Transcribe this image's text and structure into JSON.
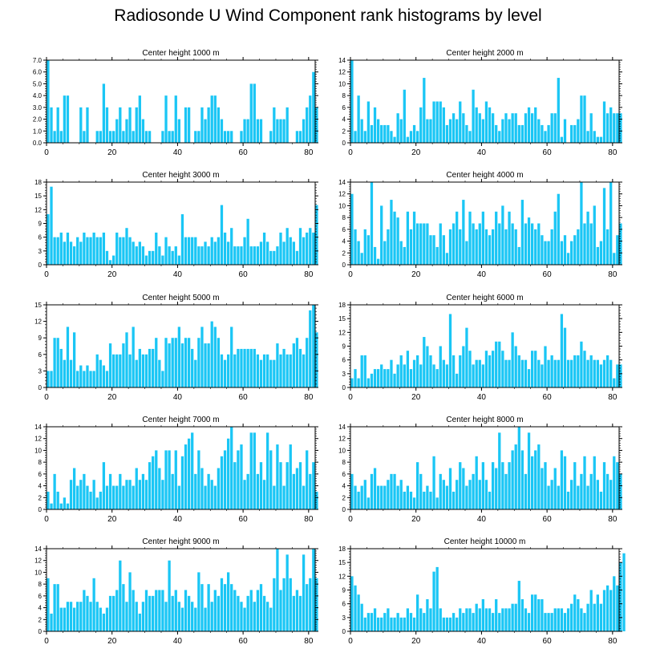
{
  "title": "Radiosonde U Wind Component rank histograms by level",
  "bar_color": "#1ac6f5",
  "chart_data": [
    {
      "type": "bar",
      "title": "Center height 1000 m",
      "ylim": [
        0,
        7
      ],
      "yticks": [
        0,
        1,
        2,
        3,
        4,
        5,
        6,
        7
      ],
      "ytick_labels": [
        "0.0",
        "1.0",
        "2.0",
        "3.0",
        "4.0",
        "5.0",
        "6.0",
        "7.0"
      ],
      "xticks": [
        0,
        20,
        40,
        60,
        80
      ],
      "xlim": [
        0,
        82
      ],
      "values": [
        7,
        3,
        1,
        3,
        1,
        4,
        4,
        0,
        0,
        0,
        3,
        1,
        3,
        0,
        0,
        1,
        1,
        5,
        3,
        1,
        1,
        2,
        3,
        1,
        2,
        3,
        1,
        3,
        4,
        2,
        1,
        1,
        0,
        0,
        0,
        1,
        4,
        1,
        1,
        4,
        2,
        0,
        3,
        3,
        0,
        1,
        1,
        3,
        2,
        3,
        4,
        4,
        3,
        2,
        1,
        1,
        1,
        0,
        0,
        1,
        2,
        2,
        5,
        5,
        2,
        2,
        0,
        0,
        1,
        3,
        2,
        2,
        2,
        3,
        0,
        0,
        1,
        1,
        2,
        3,
        4,
        6,
        3
      ]
    },
    {
      "type": "bar",
      "title": "Center height 2000 m",
      "ylim": [
        0,
        14
      ],
      "yticks": [
        0,
        2,
        4,
        6,
        8,
        10,
        12,
        14
      ],
      "ytick_labels": [
        "0",
        "2",
        "4",
        "6",
        "8",
        "10",
        "12",
        "14"
      ],
      "xticks": [
        0,
        20,
        40,
        60,
        80
      ],
      "xlim": [
        0,
        82
      ],
      "values": [
        14,
        2,
        8,
        4,
        2,
        7,
        3,
        6,
        4,
        3,
        3,
        3,
        2,
        1,
        5,
        4,
        9,
        1,
        2,
        3,
        2,
        6,
        11,
        4,
        4,
        7,
        7,
        7,
        6,
        3,
        4,
        5,
        4,
        7,
        5,
        3,
        2,
        9,
        6,
        5,
        4,
        7,
        6,
        5,
        3,
        2,
        4,
        5,
        4,
        5,
        5,
        3,
        3,
        5,
        6,
        5,
        6,
        4,
        3,
        2,
        3,
        5,
        5,
        11,
        1,
        4,
        0,
        3,
        3,
        4,
        8,
        8,
        2,
        5,
        2,
        1,
        1,
        7,
        5,
        6,
        5,
        5,
        5
      ]
    },
    {
      "type": "bar",
      "title": "Center height 3000 m",
      "ylim": [
        0,
        18
      ],
      "yticks": [
        0,
        3,
        6,
        9,
        12,
        15,
        18
      ],
      "ytick_labels": [
        "0",
        "3",
        "6",
        "9",
        "12",
        "15",
        "18"
      ],
      "xticks": [
        0,
        20,
        40,
        60,
        80
      ],
      "xlim": [
        0,
        82
      ],
      "values": [
        11,
        17,
        6,
        6,
        7,
        5,
        7,
        5,
        4,
        6,
        5,
        7,
        6,
        6,
        7,
        6,
        6,
        7,
        3,
        1,
        2,
        7,
        6,
        6,
        8,
        6,
        5,
        4,
        5,
        4,
        2,
        3,
        3,
        7,
        4,
        2,
        6,
        4,
        3,
        4,
        2,
        11,
        6,
        6,
        6,
        6,
        4,
        4,
        5,
        4,
        6,
        5,
        6,
        13,
        7,
        5,
        8,
        4,
        4,
        4,
        6,
        10,
        4,
        4,
        4,
        5,
        7,
        5,
        3,
        3,
        4,
        7,
        5,
        8,
        6,
        5,
        3,
        8,
        6,
        7,
        8,
        7,
        13
      ]
    },
    {
      "type": "bar",
      "title": "Center height 4000 m",
      "ylim": [
        0,
        14
      ],
      "yticks": [
        0,
        2,
        4,
        6,
        8,
        10,
        12,
        14
      ],
      "ytick_labels": [
        "0",
        "2",
        "4",
        "6",
        "8",
        "10",
        "12",
        "14"
      ],
      "xticks": [
        0,
        20,
        40,
        60,
        80
      ],
      "xlim": [
        0,
        82
      ],
      "values": [
        12,
        6,
        4,
        2,
        6,
        5,
        14,
        3,
        1,
        10,
        4,
        6,
        11,
        9,
        8,
        4,
        3,
        9,
        6,
        9,
        7,
        7,
        7,
        7,
        5,
        5,
        3,
        7,
        5,
        2,
        6,
        7,
        9,
        6,
        11,
        4,
        9,
        7,
        6,
        7,
        9,
        6,
        5,
        6,
        9,
        7,
        10,
        6,
        9,
        7,
        6,
        3,
        11,
        7,
        8,
        7,
        6,
        7,
        5,
        4,
        4,
        6,
        9,
        12,
        4,
        5,
        2,
        4,
        5,
        6,
        14,
        7,
        9,
        7,
        10,
        3,
        4,
        13,
        6,
        14,
        2,
        5,
        7
      ]
    },
    {
      "type": "bar",
      "title": "Center height 5000 m",
      "ylim": [
        0,
        15
      ],
      "yticks": [
        0,
        3,
        6,
        9,
        12,
        15
      ],
      "ytick_labels": [
        "0",
        "3",
        "6",
        "9",
        "12",
        "15"
      ],
      "xticks": [
        0,
        20,
        40,
        60,
        80
      ],
      "xlim": [
        0,
        82
      ],
      "values": [
        3,
        3,
        9,
        9,
        7,
        5,
        11,
        5,
        10,
        3,
        4,
        3,
        4,
        3,
        3,
        6,
        5,
        4,
        3,
        8,
        6,
        6,
        6,
        8,
        10,
        6,
        11,
        5,
        7,
        6,
        6,
        7,
        7,
        9,
        5,
        3,
        9,
        8,
        9,
        9,
        11,
        8,
        9,
        9,
        7,
        5,
        9,
        11,
        8,
        8,
        12,
        11,
        9,
        6,
        5,
        6,
        11,
        6,
        7,
        7,
        7,
        7,
        7,
        7,
        6,
        5,
        6,
        6,
        5,
        5,
        8,
        6,
        7,
        6,
        6,
        8,
        9,
        7,
        6,
        9,
        14,
        15,
        10
      ]
    },
    {
      "type": "bar",
      "title": "Center height 6000 m",
      "ylim": [
        0,
        18
      ],
      "yticks": [
        0,
        3,
        6,
        9,
        12,
        15,
        18
      ],
      "ytick_labels": [
        "0",
        "3",
        "6",
        "9",
        "12",
        "15",
        "18"
      ],
      "xticks": [
        0,
        20,
        40,
        60,
        80
      ],
      "xlim": [
        0,
        82
      ],
      "values": [
        2,
        4,
        2,
        7,
        7,
        2,
        3,
        4,
        4,
        5,
        4,
        4,
        6,
        3,
        5,
        7,
        5,
        8,
        4,
        6,
        7,
        5,
        11,
        9,
        7,
        5,
        4,
        9,
        6,
        5,
        16,
        7,
        3,
        7,
        9,
        13,
        8,
        5,
        6,
        6,
        5,
        8,
        7,
        8,
        10,
        10,
        8,
        6,
        6,
        12,
        9,
        7,
        6,
        6,
        4,
        8,
        8,
        6,
        5,
        9,
        6,
        7,
        6,
        6,
        16,
        13,
        6,
        6,
        7,
        7,
        10,
        8,
        6,
        7,
        6,
        6,
        5,
        6,
        7,
        6,
        2,
        5,
        5
      ]
    },
    {
      "type": "bar",
      "title": "Center height 7000 m",
      "ylim": [
        0,
        14
      ],
      "yticks": [
        0,
        2,
        4,
        6,
        8,
        10,
        12,
        14
      ],
      "ytick_labels": [
        "0",
        "2",
        "4",
        "6",
        "8",
        "10",
        "12",
        "14"
      ],
      "xticks": [
        0,
        20,
        40,
        60,
        80
      ],
      "xlim": [
        0,
        82
      ],
      "values": [
        3,
        1,
        6,
        3,
        1,
        2,
        1,
        5,
        7,
        4,
        5,
        6,
        4,
        3,
        5,
        2,
        3,
        8,
        4,
        6,
        4,
        4,
        6,
        4,
        5,
        5,
        4,
        7,
        5,
        6,
        5,
        8,
        9,
        10,
        7,
        5,
        10,
        10,
        6,
        10,
        4,
        9,
        11,
        12,
        13,
        6,
        10,
        7,
        4,
        6,
        5,
        4,
        7,
        9,
        10,
        12,
        14,
        8,
        10,
        11,
        5,
        6,
        13,
        13,
        6,
        8,
        5,
        13,
        10,
        4,
        11,
        8,
        4,
        8,
        11,
        6,
        7,
        8,
        4,
        10,
        6,
        8,
        3
      ]
    },
    {
      "type": "bar",
      "title": "Center height 8000 m",
      "ylim": [
        0,
        14
      ],
      "yticks": [
        0,
        2,
        4,
        6,
        8,
        10,
        12,
        14
      ],
      "ytick_labels": [
        "0",
        "2",
        "4",
        "6",
        "8",
        "10",
        "12",
        "14"
      ],
      "xticks": [
        0,
        20,
        40,
        60,
        80
      ],
      "xlim": [
        0,
        82
      ],
      "values": [
        6,
        4,
        3,
        4,
        5,
        2,
        6,
        7,
        4,
        4,
        4,
        5,
        6,
        6,
        4,
        5,
        3,
        4,
        3,
        2,
        8,
        6,
        3,
        4,
        3,
        9,
        2,
        6,
        5,
        4,
        7,
        3,
        5,
        8,
        7,
        4,
        5,
        6,
        9,
        5,
        8,
        5,
        3,
        8,
        7,
        13,
        8,
        6,
        8,
        10,
        11,
        14,
        10,
        6,
        13,
        9,
        10,
        11,
        7,
        8,
        4,
        5,
        7,
        4,
        10,
        9,
        3,
        5,
        8,
        4,
        6,
        9,
        4,
        6,
        9,
        5,
        3,
        8,
        6,
        5,
        9,
        8,
        6
      ]
    },
    {
      "type": "bar",
      "title": "Center height 9000 m",
      "ylim": [
        0,
        14
      ],
      "yticks": [
        0,
        2,
        4,
        6,
        8,
        10,
        12,
        14
      ],
      "ytick_labels": [
        "0",
        "2",
        "4",
        "6",
        "8",
        "10",
        "12",
        "14"
      ],
      "xticks": [
        0,
        20,
        40,
        60,
        80
      ],
      "xlim": [
        0,
        82
      ],
      "values": [
        9,
        3,
        8,
        8,
        4,
        4,
        5,
        5,
        4,
        5,
        5,
        7,
        6,
        5,
        9,
        5,
        4,
        3,
        4,
        6,
        6,
        7,
        12,
        8,
        5,
        10,
        7,
        5,
        3,
        5,
        7,
        6,
        6,
        7,
        7,
        7,
        5,
        12,
        6,
        7,
        5,
        4,
        7,
        6,
        5,
        4,
        10,
        8,
        4,
        8,
        5,
        7,
        6,
        9,
        8,
        10,
        8,
        7,
        6,
        5,
        4,
        6,
        7,
        5,
        7,
        8,
        6,
        5,
        4,
        9,
        14,
        7,
        9,
        13,
        9,
        6,
        7,
        6,
        13,
        8,
        9,
        14,
        9
      ]
    },
    {
      "type": "bar",
      "title": "Center height 10000 m",
      "ylim": [
        0,
        18
      ],
      "yticks": [
        0,
        3,
        6,
        9,
        12,
        15,
        18
      ],
      "ytick_labels": [
        "0",
        "3",
        "6",
        "9",
        "12",
        "15",
        "18"
      ],
      "xticks": [
        0,
        20,
        40,
        60,
        80
      ],
      "xlim": [
        0,
        82
      ],
      "values": [
        12,
        10,
        8,
        6,
        3,
        4,
        4,
        5,
        3,
        3,
        4,
        5,
        3,
        3,
        4,
        3,
        3,
        5,
        4,
        3,
        8,
        5,
        4,
        7,
        5,
        13,
        14,
        5,
        3,
        3,
        3,
        4,
        3,
        5,
        4,
        5,
        5,
        4,
        6,
        5,
        7,
        5,
        5,
        4,
        7,
        4,
        5,
        5,
        5,
        6,
        6,
        11,
        7,
        5,
        4,
        8,
        8,
        7,
        7,
        4,
        4,
        4,
        5,
        5,
        5,
        4,
        5,
        6,
        8,
        7,
        5,
        4,
        6,
        9,
        6,
        8,
        6,
        9,
        10,
        9,
        12,
        10,
        15,
        17
      ]
    }
  ],
  "layout_note": "two columns, five rows"
}
